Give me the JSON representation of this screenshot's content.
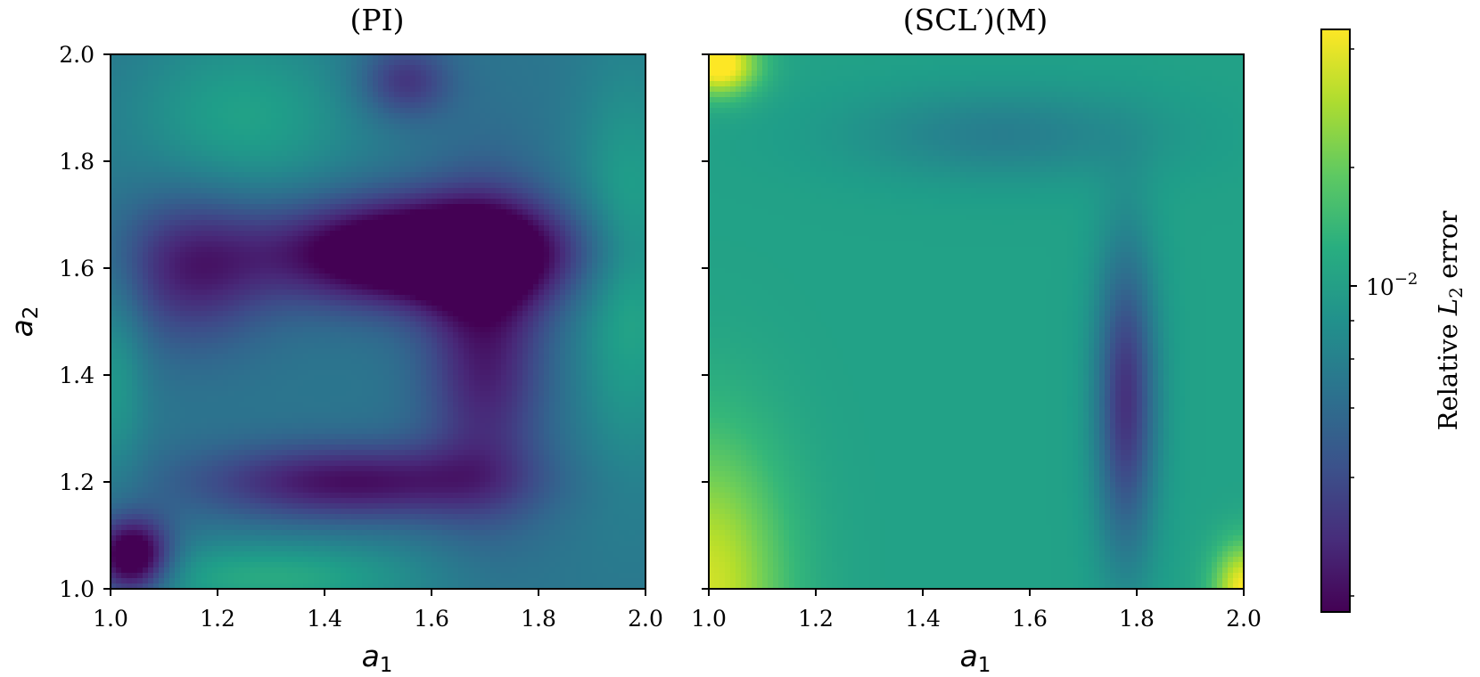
{
  "chart_data": [
    {
      "type": "heatmap",
      "title": "(PI)",
      "xlabel": "a1",
      "ylabel": "a2",
      "x_range": [
        1.0,
        2.0
      ],
      "y_range": [
        1.0,
        2.0
      ],
      "x_ticks": [
        "1.0",
        "1.2",
        "1.4",
        "1.6",
        "1.8",
        "2.0"
      ],
      "y_ticks": [
        "1.0",
        "1.2",
        "1.4",
        "1.6",
        "1.8",
        "2.0"
      ],
      "scale": "log",
      "grid": false,
      "colormap": "viridis",
      "value_field": {
        "base_log10": -2.05,
        "features": [
          {
            "kind": "trough",
            "x": 1.58,
            "y": 1.63,
            "sx": 0.2,
            "sy": 0.07,
            "depth": 0.9
          },
          {
            "kind": "trough",
            "x": 1.04,
            "y": 1.06,
            "sx": 0.05,
            "sy": 0.05,
            "depth": 0.8
          },
          {
            "kind": "trough",
            "x": 1.45,
            "y": 1.2,
            "sx": 0.2,
            "sy": 0.05,
            "depth": 0.5
          },
          {
            "kind": "trough",
            "x": 1.7,
            "y": 1.45,
            "sx": 0.08,
            "sy": 0.2,
            "depth": 0.45
          },
          {
            "kind": "trough",
            "x": 1.15,
            "y": 1.6,
            "sx": 0.1,
            "sy": 0.1,
            "depth": 0.4
          },
          {
            "kind": "trough",
            "x": 1.55,
            "y": 1.95,
            "sx": 0.06,
            "sy": 0.05,
            "depth": 0.35
          },
          {
            "kind": "peak",
            "x": 1.97,
            "y": 1.6,
            "sx": 0.07,
            "sy": 0.25,
            "depth": 0.3
          },
          {
            "kind": "peak",
            "x": 1.25,
            "y": 1.88,
            "sx": 0.15,
            "sy": 0.12,
            "depth": 0.25
          },
          {
            "kind": "peak",
            "x": 1.3,
            "y": 1.02,
            "sx": 0.2,
            "sy": 0.05,
            "depth": 0.3
          },
          {
            "kind": "peak",
            "x": 1.01,
            "y": 1.4,
            "sx": 0.04,
            "sy": 0.15,
            "depth": 0.2
          }
        ]
      }
    },
    {
      "type": "heatmap",
      "title": "(SCL′)(M)",
      "xlabel": "a1",
      "ylabel": "",
      "x_range": [
        1.0,
        2.0
      ],
      "y_range": [
        1.0,
        2.0
      ],
      "x_ticks": [
        "1.0",
        "1.2",
        "1.4",
        "1.6",
        "1.8",
        "2.0"
      ],
      "y_ticks": [],
      "scale": "log",
      "grid": false,
      "colormap": "viridis",
      "value_field": {
        "base_log10": -1.8,
        "features": [
          {
            "kind": "peak",
            "x": 1.0,
            "y": 1.0,
            "sx": 0.1,
            "sy": 0.2,
            "depth": 0.5
          },
          {
            "kind": "peak",
            "x": 2.0,
            "y": 1.0,
            "sx": 0.04,
            "sy": 0.06,
            "depth": 0.6
          },
          {
            "kind": "peak",
            "x": 1.02,
            "y": 1.98,
            "sx": 0.05,
            "sy": 0.04,
            "depth": 0.7
          },
          {
            "kind": "trough",
            "x": 1.78,
            "y": 1.35,
            "sx": 0.04,
            "sy": 0.2,
            "depth": 0.6
          },
          {
            "kind": "trough",
            "x": 1.55,
            "y": 1.85,
            "sx": 0.2,
            "sy": 0.06,
            "depth": 0.2
          }
        ]
      }
    }
  ],
  "colorbar": {
    "label_prefix": "Relative ",
    "label_var": "L",
    "label_sub": "2",
    "label_suffix": " error",
    "tick_label_base": "10",
    "tick_label_exp": "−2",
    "tick_value_log10": -2,
    "range_log10": [
      -2.6,
      -1.2
    ],
    "scale": "log",
    "colormap": "viridis"
  }
}
